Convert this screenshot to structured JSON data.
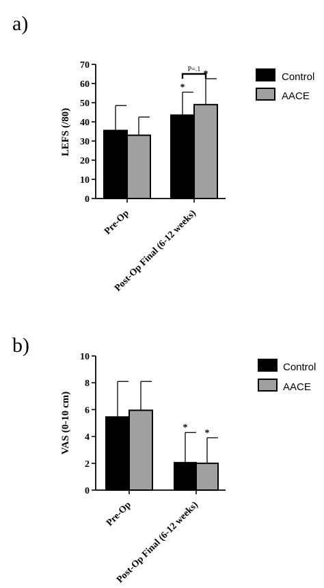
{
  "chart_data": [
    {
      "panel_label": "a)",
      "type": "bar",
      "ylabel": "LEFS (/80)",
      "ylim": [
        0,
        70
      ],
      "yticks": [
        0,
        10,
        20,
        30,
        40,
        50,
        60,
        70
      ],
      "categories": [
        "Pre-Op",
        "Post-Op Final (6-12 weeks)"
      ],
      "series": [
        {
          "name": "Control",
          "values": [
            35.5,
            43.5
          ],
          "errors": [
            13,
            12
          ],
          "color": "#000000",
          "sig": [
            "",
            "*"
          ]
        },
        {
          "name": "AACE",
          "values": [
            33,
            49
          ],
          "errors": [
            9.5,
            13.5
          ],
          "color": "#a0a0a0",
          "sig": [
            "",
            "*"
          ]
        }
      ],
      "bracket": {
        "category_index": 1,
        "text": "P=.1"
      },
      "legend": "right"
    },
    {
      "panel_label": "b)",
      "type": "bar",
      "ylabel": "VAS (0-10 cm)",
      "ylim": [
        0,
        10
      ],
      "yticks": [
        0,
        2,
        4,
        6,
        8,
        10
      ],
      "categories": [
        "Pre-Op",
        "Post-Op Final (6-12 weeks)"
      ],
      "series": [
        {
          "name": "Control",
          "values": [
            5.45,
            2.05
          ],
          "errors": [
            2.65,
            2.25
          ],
          "color": "#000000",
          "sig": [
            "",
            "*"
          ]
        },
        {
          "name": "AACE",
          "values": [
            5.95,
            2.0
          ],
          "errors": [
            2.15,
            1.9
          ],
          "color": "#a0a0a0",
          "sig": [
            "",
            "*"
          ]
        }
      ],
      "legend": "right"
    }
  ]
}
